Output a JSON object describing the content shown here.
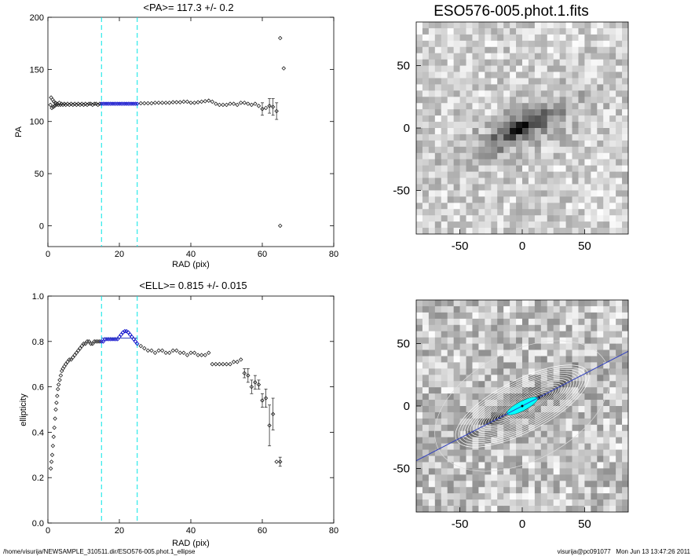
{
  "chart_data": [
    {
      "type": "scatter",
      "title": "<PA>= 117.3 +/-   0.2",
      "xlabel": "RAD (pix)",
      "ylabel": "PA",
      "xlim": [
        0,
        80
      ],
      "ylim": [
        -20,
        200
      ],
      "xticks": [
        "0",
        "20",
        "40",
        "60",
        "80"
      ],
      "yticks": [
        "0",
        "50",
        "100",
        "150",
        "200"
      ],
      "fit_range": [
        15,
        25
      ],
      "points": [
        [
          0.7,
          116
        ],
        [
          0.9,
          123
        ],
        [
          1.1,
          113
        ],
        [
          1.3,
          121
        ],
        [
          1.5,
          114
        ],
        [
          1.7,
          119
        ],
        [
          1.9,
          115
        ],
        [
          2.1,
          118
        ],
        [
          2.3,
          116
        ],
        [
          2.6,
          117
        ],
        [
          2.9,
          116
        ],
        [
          3.2,
          118
        ],
        [
          3.5,
          116
        ],
        [
          3.8,
          117
        ],
        [
          4.2,
          116
        ],
        [
          4.6,
          117
        ],
        [
          5,
          116
        ],
        [
          5.5,
          117
        ],
        [
          6,
          116
        ],
        [
          6.5,
          117
        ],
        [
          7,
          116
        ],
        [
          7.5,
          117
        ],
        [
          8,
          116
        ],
        [
          8.5,
          117
        ],
        [
          9,
          116
        ],
        [
          9.5,
          117
        ],
        [
          10,
          116
        ],
        [
          10.5,
          117
        ],
        [
          11,
          116
        ],
        [
          11.5,
          117
        ],
        [
          12,
          117
        ],
        [
          12.5,
          116
        ],
        [
          13,
          117
        ],
        [
          13.5,
          117
        ],
        [
          14,
          116
        ],
        [
          14.5,
          117
        ],
        [
          15,
          117
        ],
        [
          15.5,
          117
        ],
        [
          16,
          117
        ],
        [
          16.5,
          117
        ],
        [
          17,
          117
        ],
        [
          17.5,
          117
        ],
        [
          18,
          117
        ],
        [
          18.5,
          117
        ],
        [
          19,
          117
        ],
        [
          19.5,
          117
        ],
        [
          20,
          117
        ],
        [
          20.5,
          117
        ],
        [
          21,
          117
        ],
        [
          21.5,
          117
        ],
        [
          22,
          117
        ],
        [
          22.5,
          117
        ],
        [
          23,
          117
        ],
        [
          23.5,
          117
        ],
        [
          24,
          117
        ],
        [
          24.5,
          117
        ],
        [
          25,
          117
        ],
        [
          26,
          117.5
        ],
        [
          27,
          117.5
        ],
        [
          28,
          117.5
        ],
        [
          29,
          117.5
        ],
        [
          30,
          118
        ],
        [
          31,
          118
        ],
        [
          32,
          118
        ],
        [
          33,
          118
        ],
        [
          34,
          118
        ],
        [
          35,
          118.5
        ],
        [
          36,
          118.5
        ],
        [
          37,
          118.5
        ],
        [
          38,
          119
        ],
        [
          39,
          119
        ],
        [
          40,
          118
        ],
        [
          41,
          118
        ],
        [
          42,
          118.5
        ],
        [
          43,
          119
        ],
        [
          44,
          119.5
        ],
        [
          45,
          120
        ],
        [
          46,
          119
        ],
        [
          47,
          117
        ],
        [
          48,
          116
        ],
        [
          49,
          116
        ],
        [
          50,
          116
        ],
        [
          51,
          117
        ],
        [
          52,
          117
        ],
        [
          53,
          116
        ],
        [
          54,
          118
        ],
        [
          55,
          118
        ],
        [
          56,
          117
        ],
        [
          57,
          116
        ],
        [
          58,
          117
        ],
        [
          59,
          115
        ],
        [
          60,
          112
        ],
        [
          61,
          113
        ],
        [
          62,
          115
        ],
        [
          63,
          114
        ],
        [
          64,
          110
        ],
        [
          65,
          180
        ],
        [
          66,
          151
        ],
        [
          65,
          0
        ]
      ],
      "errors": [
        [
          60,
          6
        ],
        [
          62,
          7
        ],
        [
          63,
          8
        ],
        [
          64,
          8
        ]
      ]
    },
    {
      "type": "scatter",
      "title": "<ELL>= 0.815 +/-  0.015",
      "xlabel": "RAD (pix)",
      "ylabel": "ellipticity",
      "xlim": [
        0,
        80
      ],
      "ylim": [
        0,
        1
      ],
      "xticks": [
        "0",
        "20",
        "40",
        "60",
        "80"
      ],
      "yticks": [
        "0.0",
        "0.2",
        "0.4",
        "0.6",
        "0.8",
        "1.0"
      ],
      "fit_range": [
        15,
        25
      ],
      "points": [
        [
          0.8,
          0.24
        ],
        [
          1.0,
          0.27
        ],
        [
          1.2,
          0.3
        ],
        [
          1.4,
          0.34
        ],
        [
          1.6,
          0.38
        ],
        [
          1.8,
          0.42
        ],
        [
          2.0,
          0.46
        ],
        [
          2.2,
          0.5
        ],
        [
          2.4,
          0.53
        ],
        [
          2.6,
          0.56
        ],
        [
          2.8,
          0.59
        ],
        [
          3.0,
          0.61
        ],
        [
          3.3,
          0.63
        ],
        [
          3.6,
          0.65
        ],
        [
          3.9,
          0.67
        ],
        [
          4.2,
          0.68
        ],
        [
          4.6,
          0.69
        ],
        [
          5.0,
          0.7
        ],
        [
          5.5,
          0.71
        ],
        [
          6.0,
          0.72
        ],
        [
          6.5,
          0.72
        ],
        [
          7.0,
          0.73
        ],
        [
          7.5,
          0.74
        ],
        [
          8.0,
          0.75
        ],
        [
          8.5,
          0.76
        ],
        [
          9.0,
          0.77
        ],
        [
          9.5,
          0.78
        ],
        [
          10,
          0.79
        ],
        [
          10.5,
          0.79
        ],
        [
          11,
          0.8
        ],
        [
          11.5,
          0.8
        ],
        [
          12,
          0.79
        ],
        [
          12.5,
          0.79
        ],
        [
          13,
          0.8
        ],
        [
          13.5,
          0.8
        ],
        [
          14,
          0.8
        ],
        [
          14.5,
          0.8
        ],
        [
          15,
          0.8
        ],
        [
          15.5,
          0.8
        ],
        [
          16,
          0.81
        ],
        [
          16.5,
          0.81
        ],
        [
          17,
          0.81
        ],
        [
          17.5,
          0.81
        ],
        [
          18,
          0.81
        ],
        [
          18.5,
          0.81
        ],
        [
          19,
          0.81
        ],
        [
          19.5,
          0.81
        ],
        [
          20,
          0.82
        ],
        [
          20.5,
          0.83
        ],
        [
          21,
          0.84
        ],
        [
          21.5,
          0.845
        ],
        [
          22,
          0.845
        ],
        [
          22.5,
          0.84
        ],
        [
          23,
          0.83
        ],
        [
          23.5,
          0.82
        ],
        [
          24,
          0.81
        ],
        [
          24.5,
          0.8
        ],
        [
          25,
          0.79
        ],
        [
          26,
          0.78
        ],
        [
          27,
          0.77
        ],
        [
          28,
          0.76
        ],
        [
          29,
          0.76
        ],
        [
          30,
          0.75
        ],
        [
          31,
          0.76
        ],
        [
          32,
          0.76
        ],
        [
          33,
          0.75
        ],
        [
          34,
          0.75
        ],
        [
          35,
          0.76
        ],
        [
          36,
          0.76
        ],
        [
          37,
          0.75
        ],
        [
          38,
          0.75
        ],
        [
          39,
          0.74
        ],
        [
          40,
          0.75
        ],
        [
          41,
          0.75
        ],
        [
          42,
          0.74
        ],
        [
          43,
          0.74
        ],
        [
          44,
          0.74
        ],
        [
          45,
          0.75
        ],
        [
          46,
          0.7
        ],
        [
          47,
          0.7
        ],
        [
          48,
          0.7
        ],
        [
          49,
          0.7
        ],
        [
          50,
          0.7
        ],
        [
          51,
          0.7
        ],
        [
          52,
          0.71
        ],
        [
          53,
          0.71
        ],
        [
          54,
          0.72
        ],
        [
          55,
          0.66
        ],
        [
          56,
          0.65
        ],
        [
          57,
          0.6
        ],
        [
          58,
          0.62
        ],
        [
          59,
          0.61
        ],
        [
          60,
          0.54
        ],
        [
          61,
          0.55
        ],
        [
          62,
          0.43
        ],
        [
          63,
          0.48
        ],
        [
          64,
          0.27
        ],
        [
          65,
          0.27
        ]
      ],
      "errors": [
        [
          55,
          0.02
        ],
        [
          56,
          0.03
        ],
        [
          57,
          0.03
        ],
        [
          58,
          0.03
        ],
        [
          59,
          0.02
        ],
        [
          60,
          0.03
        ],
        [
          61,
          0.04
        ],
        [
          62,
          0.09
        ],
        [
          63,
          0.07
        ],
        [
          65,
          0.02
        ]
      ]
    },
    {
      "type": "heatmap",
      "title": "ESO576-005.phot.1.fits",
      "xlim": [
        -85,
        85
      ],
      "ylim": [
        -85,
        85
      ],
      "xticks": [
        "-50",
        "0",
        "50"
      ],
      "yticks": [
        "-50",
        "0",
        "50"
      ],
      "pa_deg": 117.3,
      "ell": 0.815
    },
    {
      "type": "heatmap",
      "title": "",
      "xlim": [
        -85,
        85
      ],
      "ylim": [
        -85,
        85
      ],
      "xticks": [
        "-50",
        "0",
        "50"
      ],
      "yticks": [
        "-50",
        "0",
        "50"
      ],
      "pa_deg": 117.3,
      "ell": 0.815
    }
  ],
  "footer": {
    "left": "/home/visurija/NEWSAMPLE_310511.dir/ESO576-005.phot.1_ellipse",
    "right": "visurija@pc091077   Mon Jun 13 13:47:26 2011"
  },
  "colors": {
    "fit_lines": "#00e5e5",
    "fit_points": "#0000c8",
    "major_axis": "#3040c0",
    "core": "#00ffff"
  }
}
